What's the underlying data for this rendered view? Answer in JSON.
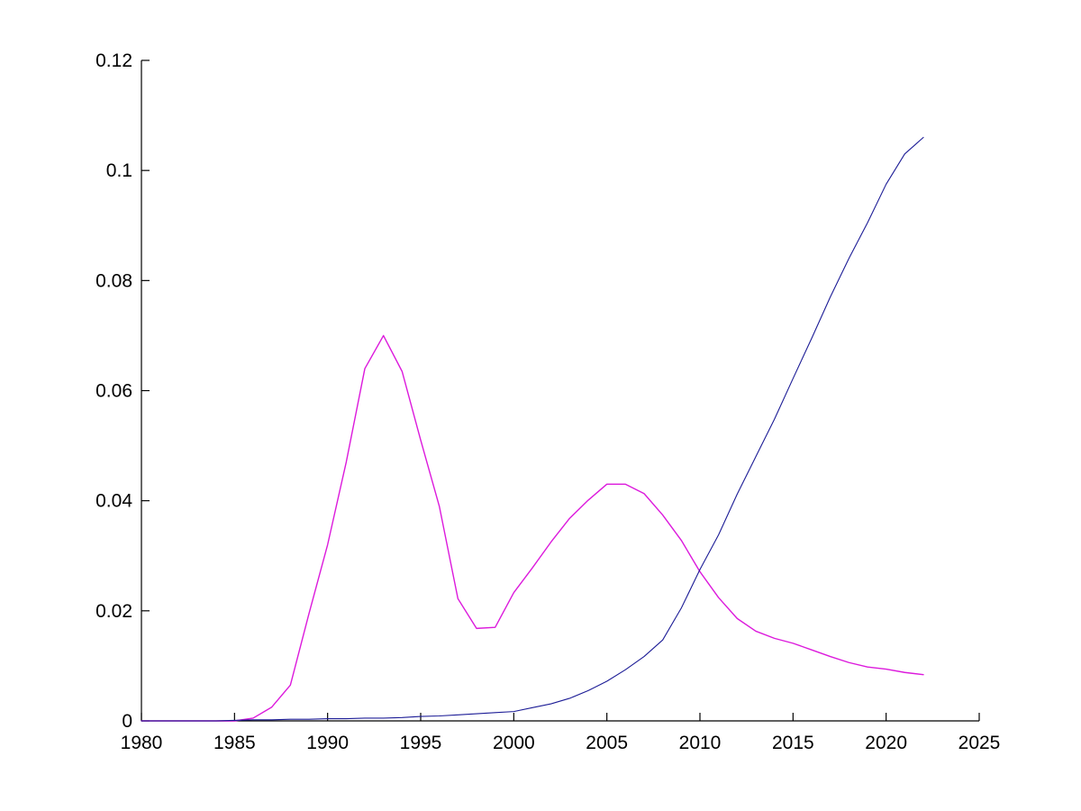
{
  "figure": {
    "background": "#ffffff",
    "axis_color": "#000000",
    "tick_label_color": "#000000"
  },
  "chart_data": {
    "type": "line",
    "title": "",
    "xlabel": "",
    "ylabel": "",
    "grid": false,
    "legend": "none",
    "box": "off",
    "xlim": [
      1980,
      2025
    ],
    "ylim": [
      0,
      0.12
    ],
    "xticks": {
      "values": [
        1980,
        1985,
        1990,
        1995,
        2000,
        2005,
        2010,
        2015,
        2020,
        2025
      ],
      "labels": [
        "1980",
        "1985",
        "1990",
        "1995",
        "2000",
        "2005",
        "2010",
        "2015",
        "2020",
        "2025"
      ]
    },
    "yticks": {
      "values": [
        0,
        0.02,
        0.04,
        0.06,
        0.08,
        0.1,
        0.12
      ],
      "labels": [
        "0",
        "0.02",
        "0.04",
        "0.06",
        "0.08",
        "0.1",
        "0.12"
      ]
    },
    "x": [
      1980,
      1981,
      1982,
      1983,
      1984,
      1985,
      1986,
      1987,
      1988,
      1989,
      1990,
      1991,
      1992,
      1993,
      1994,
      1995,
      1996,
      1997,
      1998,
      1999,
      2000,
      2001,
      2002,
      2003,
      2004,
      2005,
      2006,
      2007,
      2008,
      2009,
      2010,
      2011,
      2012,
      2013,
      2014,
      2015,
      2016,
      2017,
      2018,
      2019,
      2020,
      2021,
      2022
    ],
    "series": [
      {
        "name": "magenta",
        "color": "#dc1adc",
        "stroke_width": 1.4,
        "values": [
          0,
          0,
          0,
          0,
          0,
          0,
          0.0005,
          0.0025,
          0.0065,
          0.0195,
          0.032,
          0.047,
          0.064,
          0.07,
          0.0635,
          0.051,
          0.039,
          0.0222,
          0.0168,
          0.017,
          0.0233,
          0.0278,
          0.0325,
          0.0368,
          0.0401,
          0.043,
          0.043,
          0.0413,
          0.0374,
          0.0328,
          0.0271,
          0.0224,
          0.0186,
          0.0163,
          0.015,
          0.0141,
          0.0129,
          0.0117,
          0.0106,
          0.0098,
          0.0094,
          0.0088,
          0.0084
        ]
      },
      {
        "name": "blue",
        "color": "#1c1c96",
        "stroke_width": 1.1,
        "values": [
          0,
          0,
          0,
          0,
          0,
          0.0001,
          0.0002,
          0.0002,
          0.0003,
          0.0003,
          0.0004,
          0.0004,
          0.0005,
          0.0005,
          0.0006,
          0.0008,
          0.0009,
          0.0011,
          0.0013,
          0.0015,
          0.0017,
          0.0024,
          0.0031,
          0.0041,
          0.0055,
          0.0072,
          0.0093,
          0.0117,
          0.0147,
          0.0205,
          0.0275,
          0.0338,
          0.0412,
          0.048,
          0.0548,
          0.0622,
          0.0695,
          0.077,
          0.084,
          0.0905,
          0.0975,
          0.103,
          0.106
        ]
      }
    ]
  }
}
